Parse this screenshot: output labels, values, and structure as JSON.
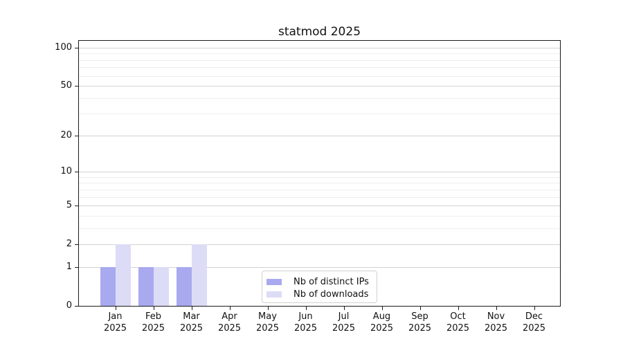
{
  "chart_data": {
    "type": "bar",
    "title": "statmod 2025",
    "x_ticks": [
      {
        "line1": "Jan",
        "line2": "2025"
      },
      {
        "line1": "Feb",
        "line2": "2025"
      },
      {
        "line1": "Mar",
        "line2": "2025"
      },
      {
        "line1": "Apr",
        "line2": "2025"
      },
      {
        "line1": "May",
        "line2": "2025"
      },
      {
        "line1": "Jun",
        "line2": "2025"
      },
      {
        "line1": "Jul",
        "line2": "2025"
      },
      {
        "line1": "Aug",
        "line2": "2025"
      },
      {
        "line1": "Sep",
        "line2": "2025"
      },
      {
        "line1": "Oct",
        "line2": "2025"
      },
      {
        "line1": "Nov",
        "line2": "2025"
      },
      {
        "line1": "Dec",
        "line2": "2025"
      }
    ],
    "series": [
      {
        "name": "Nb of distinct IPs",
        "color": "#a9a9f0",
        "values": [
          1,
          1,
          1,
          0,
          0,
          0,
          0,
          0,
          0,
          0,
          0,
          0
        ]
      },
      {
        "name": "Nb of downloads",
        "color": "#dddcf6",
        "values": [
          2,
          1,
          2,
          0,
          0,
          0,
          0,
          0,
          0,
          0,
          0,
          0
        ]
      }
    ],
    "y_axis": {
      "scale": "log10(value+1)",
      "major_ticks": [
        0,
        1,
        2,
        5,
        10,
        20,
        50,
        100
      ],
      "minor_gridline_values": [
        3,
        4,
        6,
        7,
        8,
        9,
        30,
        40,
        60,
        70,
        80,
        90
      ],
      "range": [
        0,
        115
      ]
    },
    "grid": "horizontal",
    "legend_position": "lower-center",
    "colors": {
      "major_grid": "#d2d2d2",
      "minor_grid": "#eeeeee",
      "spine": "#1a1a1a",
      "text": "#111111",
      "background": "#ffffff"
    }
  }
}
